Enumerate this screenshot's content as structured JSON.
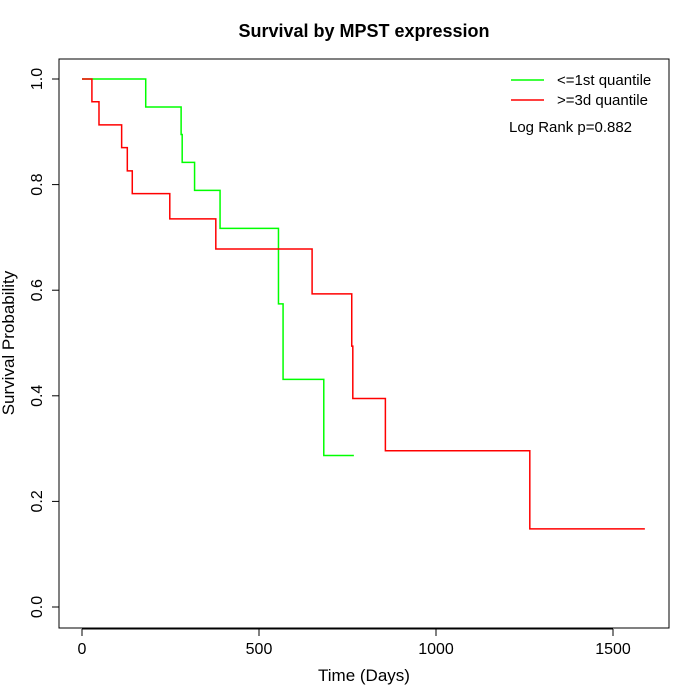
{
  "chart_data": {
    "type": "line",
    "title": "Survival by MPST expression",
    "xlabel": "Time (Days)",
    "ylabel": "Survival Probability",
    "xlim": [
      0,
      1650
    ],
    "ylim": [
      0,
      1.0
    ],
    "x_ticks": [
      0,
      500,
      1000,
      1500
    ],
    "x_tick_labels": [
      "0",
      "500",
      "1000",
      "1500"
    ],
    "y_ticks": [
      0.0,
      0.2,
      0.4,
      0.6,
      0.8,
      1.0
    ],
    "y_tick_labels": [
      "0.0",
      "0.2",
      "0.4",
      "0.6",
      "0.8",
      "1.0"
    ],
    "legend_position": "top-right",
    "annotation": "Log Rank p=0.882",
    "series": [
      {
        "name": "<=1st quantile",
        "color": "#00ff00",
        "step": true,
        "points": [
          [
            0,
            1.0
          ],
          [
            180,
            0.947
          ],
          [
            280,
            0.895
          ],
          [
            283,
            0.842
          ],
          [
            318,
            0.789
          ],
          [
            390,
            0.717
          ],
          [
            555,
            0.574
          ],
          [
            568,
            0.431
          ],
          [
            683,
            0.287
          ],
          [
            768,
            0.287
          ]
        ]
      },
      {
        "name": ">=3d quantile",
        "color": "#ff0000",
        "step": true,
        "points": [
          [
            0,
            1.0
          ],
          [
            28,
            0.957
          ],
          [
            48,
            0.913
          ],
          [
            112,
            0.87
          ],
          [
            128,
            0.826
          ],
          [
            142,
            0.783
          ],
          [
            248,
            0.735
          ],
          [
            378,
            0.678
          ],
          [
            650,
            0.593
          ],
          [
            762,
            0.494
          ],
          [
            765,
            0.395
          ],
          [
            857,
            0.296
          ],
          [
            1265,
            0.148
          ],
          [
            1590,
            0.148
          ]
        ]
      }
    ]
  }
}
